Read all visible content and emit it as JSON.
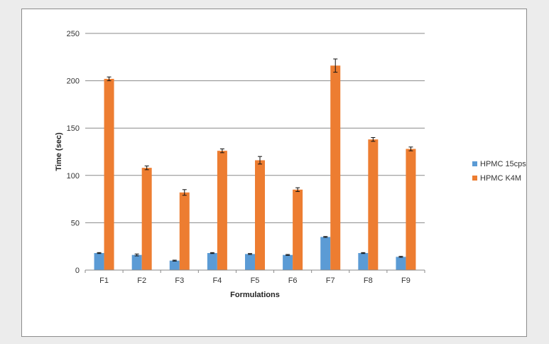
{
  "chart_data": {
    "type": "bar",
    "title": "",
    "xlabel": "Formulations",
    "ylabel": "Time (sec)",
    "ylim": [
      0,
      250
    ],
    "yticks": [
      0,
      50,
      100,
      150,
      200,
      250
    ],
    "grid": true,
    "legend_position": "right",
    "categories": [
      "F1",
      "F2",
      "F3",
      "F4",
      "F5",
      "F6",
      "F7",
      "F8",
      "F9"
    ],
    "series": [
      {
        "name": "HPMC 15cps",
        "color": "#5b9bd5",
        "values": [
          18,
          16,
          10,
          18,
          17,
          16,
          35,
          18,
          14
        ],
        "errors": [
          0.5,
          1,
          0.5,
          0.5,
          0.5,
          0.5,
          0.5,
          0.5,
          0.5
        ]
      },
      {
        "name": "HPMC K4M",
        "color": "#ed7d31",
        "values": [
          202,
          108,
          82,
          126,
          116,
          85,
          216,
          138,
          128
        ],
        "errors": [
          2,
          2,
          3,
          2,
          4,
          2,
          7,
          2,
          2
        ]
      }
    ]
  }
}
